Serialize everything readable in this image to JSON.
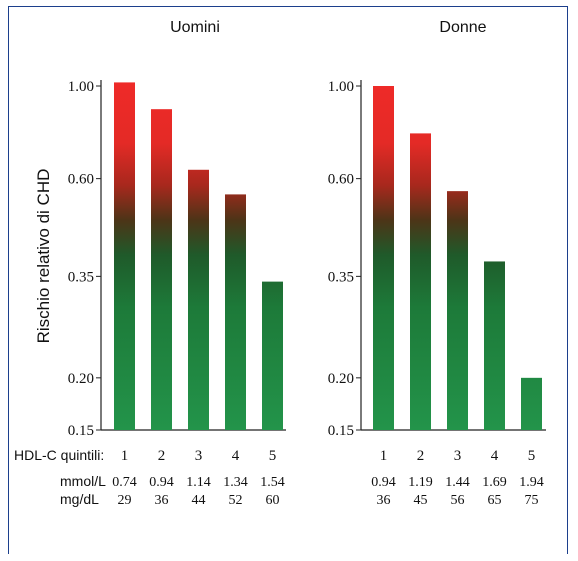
{
  "chart_data": [
    {
      "type": "bar",
      "title": "Uomini",
      "ylabel": "Rischio relativo di CHD",
      "yscale": "log",
      "ylim": [
        0.15,
        1.0
      ],
      "yticks": [
        "1.00",
        "0.60",
        "0.35",
        "0.20",
        "0.15"
      ],
      "categories": [
        "1",
        "2",
        "3",
        "4",
        "5"
      ],
      "values": [
        1.02,
        0.88,
        0.63,
        0.55,
        0.34
      ],
      "mmol": [
        "0.74",
        "0.94",
        "1.14",
        "1.34",
        "1.54"
      ],
      "mgdl": [
        "29",
        "36",
        "44",
        "52",
        "60"
      ],
      "grid": false
    },
    {
      "type": "bar",
      "title": "Donne",
      "yscale": "log",
      "ylim": [
        0.15,
        1.0
      ],
      "yticks": [
        "1.00",
        "0.60",
        "0.35",
        "0.20",
        "0.15"
      ],
      "categories": [
        "1",
        "2",
        "3",
        "4",
        "5"
      ],
      "values": [
        1.0,
        0.77,
        0.56,
        0.38,
        0.2
      ],
      "mmol": [
        "0.94",
        "1.19",
        "1.44",
        "1.69",
        "1.94"
      ],
      "mgdl": [
        "36",
        "45",
        "56",
        "65",
        "75"
      ],
      "grid": false
    }
  ],
  "row_labels": {
    "quintili": "HDL-C quintili:",
    "mmol": "mmol/L",
    "mgdl": "mg/dL"
  },
  "colors": {
    "frame": "#1c3f8c",
    "bar_top": "#e8292b",
    "bar_mid": "#3d3a17",
    "bar_bottom": "#1e8a41"
  }
}
